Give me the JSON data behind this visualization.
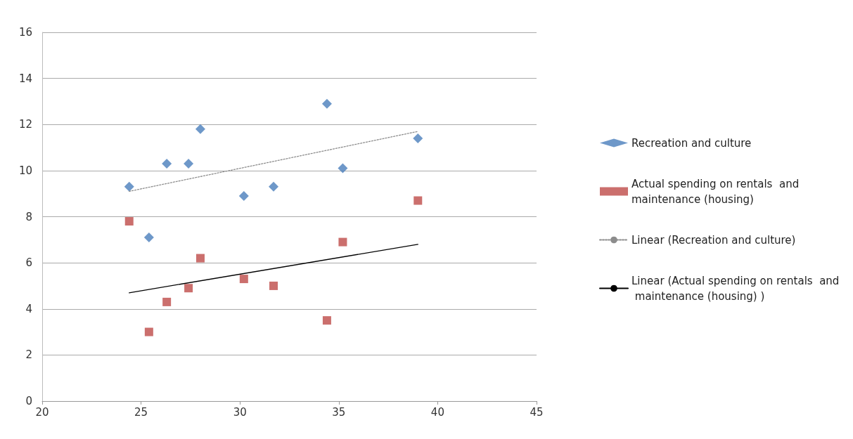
{
  "chart_data": {
    "type": "scatter",
    "xlim": [
      20,
      45
    ],
    "xticks": [
      20,
      25,
      30,
      35,
      40,
      45
    ],
    "ylim": [
      0,
      16
    ],
    "yticks": [
      0,
      2,
      4,
      6,
      8,
      10,
      12,
      14,
      16
    ],
    "grid": "y",
    "legend": "right",
    "series": [
      {
        "name": "Recreation and culture",
        "color": "#4a7ebb",
        "marker": "diamond",
        "x": [
          24.4,
          25.4,
          26.3,
          27.4,
          28.0,
          30.2,
          31.7,
          34.4,
          35.2,
          39.0
        ],
        "values": [
          9.3,
          7.1,
          10.3,
          10.3,
          11.8,
          8.9,
          9.3,
          12.9,
          10.1,
          11.4
        ]
      },
      {
        "name": "Actual spending on rentals  and maintenance (housing)",
        "color": "#be4b48",
        "marker": "square",
        "x": [
          24.4,
          25.4,
          26.3,
          27.4,
          28.0,
          30.2,
          31.7,
          34.4,
          35.2,
          39.0
        ],
        "values": [
          7.8,
          3.0,
          4.3,
          4.9,
          6.2,
          5.3,
          5.0,
          3.5,
          6.9,
          8.7
        ]
      },
      {
        "name": "Linear (Recreation and culture)",
        "type": "line",
        "color": "#8c8c8c",
        "marker": "none",
        "line_style": "dotted",
        "x": [
          24.4,
          39.0
        ],
        "values": [
          9.1,
          11.7
        ]
      },
      {
        "name": "Linear (Actual spending on rentals  and maintenance (housing) )",
        "type": "line",
        "color": "#000000",
        "marker": "none",
        "line_style": "solid",
        "x": [
          24.4,
          39.0
        ],
        "values": [
          4.7,
          6.8
        ]
      }
    ]
  }
}
